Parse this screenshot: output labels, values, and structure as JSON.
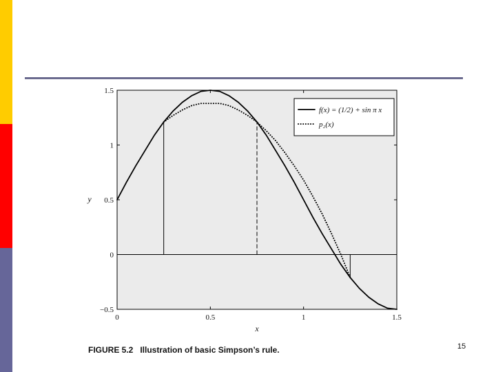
{
  "chart_data": {
    "type": "line",
    "xlabel": "x",
    "ylabel": "y",
    "caption": "FIGURE 5.2   Illustration of basic Simpson’s rule.",
    "xlim": [
      0,
      1.5
    ],
    "ylim": [
      -0.5,
      1.5
    ],
    "xticks": [
      0,
      0.5,
      1,
      1.5
    ],
    "yticks": [
      {
        "value": -0.5,
        "label": "−0.5"
      },
      0,
      0.5,
      1,
      1.5
    ],
    "x": [
      0,
      0.05,
      0.1,
      0.15,
      0.2,
      0.25,
      0.3,
      0.35,
      0.4,
      0.45,
      0.5,
      0.55,
      0.6,
      0.65,
      0.7,
      0.75,
      0.8,
      0.85,
      0.9,
      0.95,
      1.0,
      1.05,
      1.1,
      1.15,
      1.2,
      1.25,
      1.3,
      1.35,
      1.4,
      1.45,
      1.5
    ],
    "series": [
      {
        "name": "f(x) = (1/2) + sin π x",
        "color": "#000000",
        "style": "solid",
        "values": [
          0.5,
          0.66,
          0.81,
          0.95,
          1.09,
          1.21,
          1.31,
          1.39,
          1.45,
          1.49,
          1.5,
          1.49,
          1.45,
          1.39,
          1.31,
          1.21,
          1.09,
          0.95,
          0.81,
          0.66,
          0.5,
          0.34,
          0.19,
          0.05,
          -0.09,
          -0.21,
          -0.31,
          -0.39,
          -0.45,
          -0.49,
          -0.5
        ]
      },
      {
        "name": "p₂(x)",
        "color": "#000000",
        "style": "dotted",
        "values": [
          null,
          null,
          null,
          null,
          null,
          1.21,
          1.27,
          1.32,
          1.36,
          1.38,
          1.38,
          1.38,
          1.36,
          1.32,
          1.27,
          1.21,
          1.13,
          1.04,
          0.93,
          0.81,
          0.68,
          0.53,
          0.37,
          0.19,
          0.0,
          -0.21,
          null,
          null,
          null,
          null,
          null
        ]
      }
    ],
    "vlines": [
      {
        "x": 0.25,
        "y": 1.21,
        "style": "solid"
      },
      {
        "x": 0.75,
        "y": 1.21,
        "style": "dashed"
      },
      {
        "x": 1.25,
        "y": -0.21,
        "style": "solid"
      }
    ],
    "page_number": "15"
  }
}
